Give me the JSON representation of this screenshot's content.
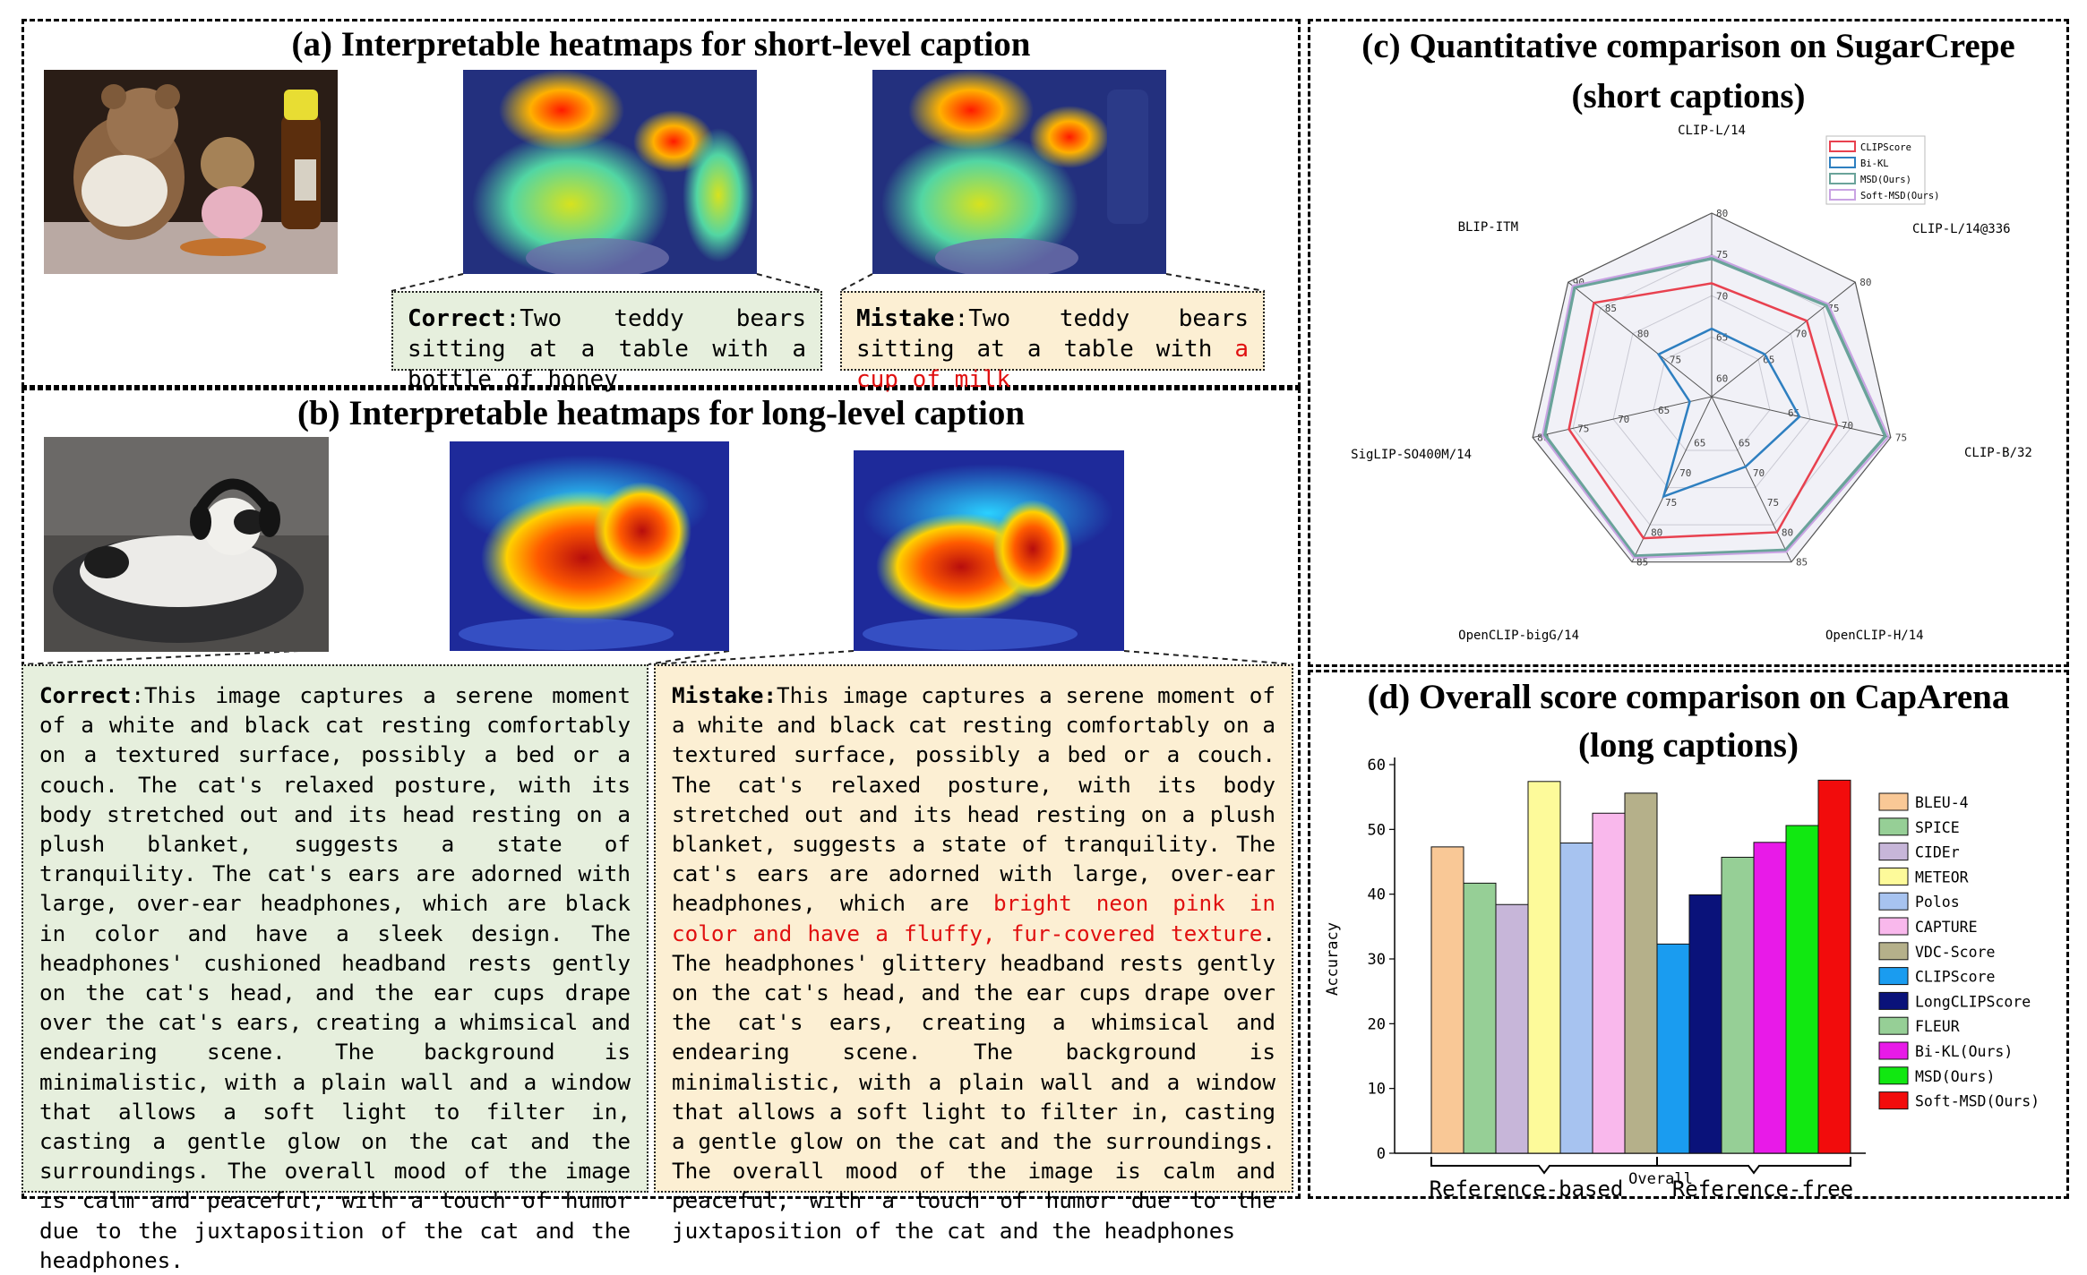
{
  "panel_a": {
    "title": "(a) Interpretable heatmaps for short-level caption",
    "correct_label": "Correct",
    "correct_text": "Two teddy bears sitting at a table with a bottle of honey",
    "mistake_label": "Mistake",
    "mistake_text_plain": "Two teddy bears sitting at a table with ",
    "mistake_text_red": "a cup of milk"
  },
  "panel_b": {
    "title": "(b) Interpretable heatmaps for long-level caption",
    "correct_label": "Correct",
    "correct_text": "This image captures a serene moment of a white and black cat resting comfortably on a textured surface, possibly a bed or a couch. The cat's relaxed posture, with its body stretched out and its head resting on a plush blanket, suggests a state of tranquility. The cat's ears are adorned with large, over-ear headphones, which are black in color and have a sleek design. The headphones' cushioned headband rests gently on the cat's head, and the ear cups drape over the cat's ears, creating a whimsical and endearing scene. The background is minimalistic, with a plain wall and a window that allows a soft light to filter in, casting a gentle glow on the cat and the surroundings. The overall mood of the image is calm and peaceful, with a touch of humor due to the juxtaposition of the cat and the headphones.",
    "mistake_label": "Mistake:",
    "mistake_text_1": "This image captures a serene moment of a white and black cat resting comfortably on a textured surface, possibly a bed or a couch. The cat's relaxed posture, with its body stretched out and its head resting on a plush blanket, suggests a state of tranquility. The cat's ears are adorned with large, over-ear headphones, which are ",
    "mistake_text_red": "bright neon pink in color and have a fluffy, fur-covered texture",
    "mistake_text_2": ". The headphones' glittery headband rests gently on the cat's head, and the ear cups drape over the cat's ears, creating a whimsical and endearing scene. The background is minimalistic, with a plain wall and a window that allows a soft light to filter in, casting a gentle glow on the cat and the surroundings. The overall mood of the image is calm and peaceful, with a touch of humor due to the juxtaposition of the cat and the headphones"
  },
  "panel_c": {
    "title_line1": "(c) Quantitative comparison on SugarCrepe",
    "title_line2": "(short captions)"
  },
  "panel_d": {
    "title_line1": "(d) Overall score comparison on CapArena",
    "title_line2": "(long captions)"
  },
  "colors": {
    "CLIPScore_radar": "#e8414f",
    "BiKL_radar": "#2e7fc0",
    "MSD_radar": "#6aa39a",
    "SoftMSD_radar": "#c9a3e3"
  },
  "chart_data": [
    {
      "type": "radar",
      "axes": [
        "CLIP-L/14",
        "CLIP-L/14@336",
        "CLIP-B/32",
        "OpenCLIP-H/14",
        "OpenCLIP-bigG/14",
        "SigLIP-SO400M/14",
        "BLIP-ITM"
      ],
      "axis_ranges": [
        [
          60,
          80
        ],
        [
          60,
          80
        ],
        [
          60,
          75
        ],
        [
          60,
          85
        ],
        [
          60,
          85
        ],
        [
          60,
          80
        ],
        [
          70,
          90
        ]
      ],
      "axis_ticks": [
        [
          60,
          65,
          70,
          75,
          80
        ],
        [
          65,
          70,
          75,
          80
        ],
        [
          65,
          70,
          75
        ],
        [
          65,
          70,
          75,
          80,
          85
        ],
        [
          65,
          70,
          75,
          80,
          85
        ],
        [
          65,
          70,
          75,
          80
        ],
        [
          75,
          80,
          85,
          90
        ]
      ],
      "series": [
        {
          "name": "CLIPScore",
          "values": [
            71.5,
            72.5,
            70.0,
            80.0,
            81.0,
            75.5,
            86.0
          ]
        },
        {
          "name": "Bi-KL",
          "values": [
            66.0,
            66.0,
            66.5,
            69.0,
            74.0,
            60.5,
            76.0
          ]
        },
        {
          "name": "MSD(Ours)",
          "values": [
            74.5,
            75.5,
            74.5,
            83.0,
            84.0,
            78.5,
            89.0
          ]
        },
        {
          "name": "Soft-MSD(Ours)",
          "values": [
            74.8,
            75.8,
            74.8,
            83.3,
            84.3,
            78.8,
            89.3
          ]
        }
      ]
    },
    {
      "type": "bar",
      "ylabel": "Accuracy",
      "xlabel": "Overall",
      "ylim": [
        0,
        60
      ],
      "yticks": [
        0,
        10,
        20,
        30,
        40,
        50,
        60
      ],
      "groups": [
        "Reference-based",
        "Reference-free"
      ],
      "categories": [
        "BLEU-4",
        "SPICE",
        "CIDEr",
        "METEOR",
        "Polos",
        "CAPTURE",
        "VDC-Score",
        "CLIPScore",
        "LongCLIPScore",
        "FLEUR",
        "Bi-KL(Ours)",
        "MSD(Ours)",
        "Soft-MSD(Ours)"
      ],
      "values": [
        47.3,
        41.7,
        38.4,
        57.4,
        47.9,
        52.5,
        55.6,
        32.3,
        39.9,
        45.7,
        48.0,
        50.6,
        57.6
      ],
      "colors": [
        "#f9c896",
        "#96cf96",
        "#c7b6d9",
        "#fdfa9a",
        "#a7c3f0",
        "#f9b8ec",
        "#b5b08a",
        "#1a9cf0",
        "#0a127a",
        "#96cf96",
        "#e81ae8",
        "#11e811",
        "#f20c0c"
      ]
    }
  ]
}
